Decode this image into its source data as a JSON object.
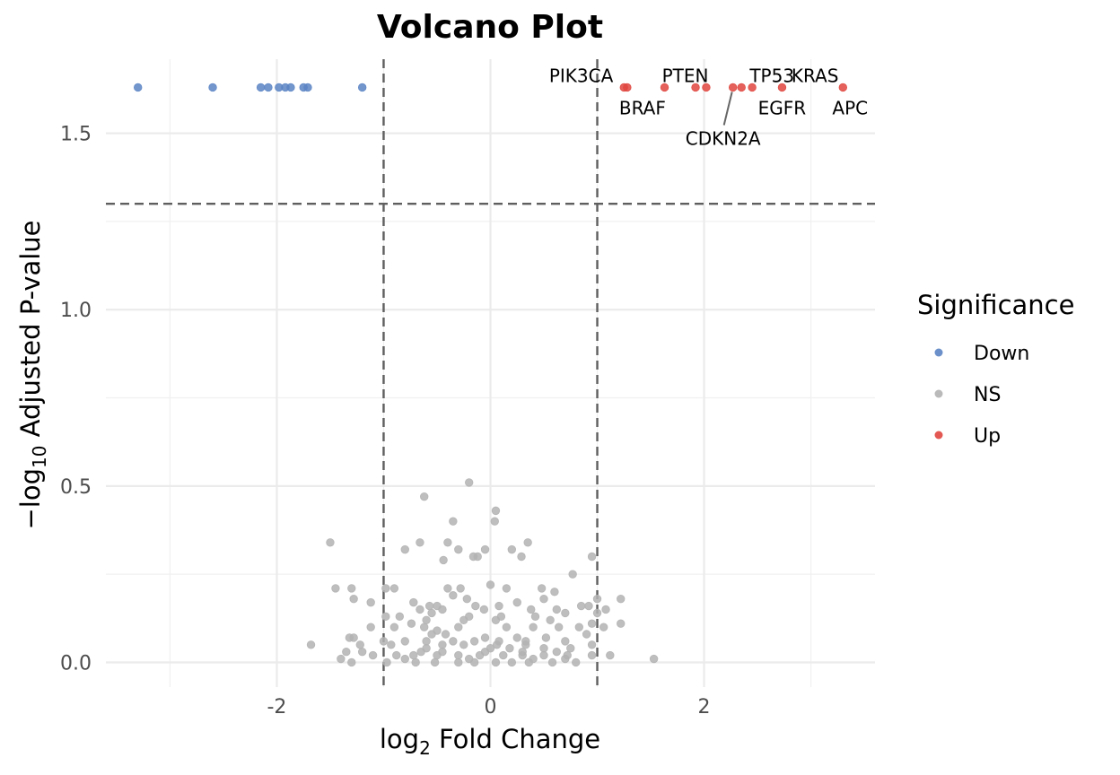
{
  "chart_data": {
    "type": "scatter",
    "title": "Volcano Plot",
    "xlabel": "log2 Fold Change",
    "ylabel": "−log10 Adjusted P-value",
    "xlim": [
      -3.6,
      3.6
    ],
    "ylim": [
      -0.07,
      1.71
    ],
    "x_ticks": [
      "-2",
      "0",
      "2"
    ],
    "y_ticks": [
      "0.0",
      "0.5",
      "1.0",
      "1.5"
    ],
    "grid": true,
    "legend": {
      "title": "Significance",
      "placement": "right",
      "entries": [
        {
          "label": "Down",
          "color": "#5b84c4"
        },
        {
          "label": "NS",
          "color": "#b3b3b3"
        },
        {
          "label": "Up",
          "color": "#e0463f"
        }
      ]
    },
    "thresholds": {
      "log2fc": [
        -1,
        1
      ],
      "neg_log10_padj": 1.3
    },
    "series": [
      {
        "name": "Down",
        "color": "#5b84c4",
        "points": [
          [
            -3.3,
            1.63
          ],
          [
            -2.6,
            1.63
          ],
          [
            -2.15,
            1.63
          ],
          [
            -2.08,
            1.63
          ],
          [
            -1.98,
            1.63
          ],
          [
            -1.92,
            1.63
          ],
          [
            -1.87,
            1.63
          ],
          [
            -1.75,
            1.63
          ],
          [
            -1.71,
            1.63
          ],
          [
            -1.2,
            1.63
          ]
        ]
      },
      {
        "name": "NS",
        "color": "#b3b3b3",
        "points": [
          [
            -0.2,
            0.51
          ],
          [
            0.05,
            0.43
          ],
          [
            -0.62,
            0.47
          ],
          [
            -0.35,
            0.4
          ],
          [
            0.04,
            0.4
          ],
          [
            -1.5,
            0.34
          ],
          [
            -0.66,
            0.34
          ],
          [
            -0.4,
            0.34
          ],
          [
            -0.8,
            0.32
          ],
          [
            -0.3,
            0.32
          ],
          [
            0.2,
            0.32
          ],
          [
            -0.05,
            0.32
          ],
          [
            0.35,
            0.34
          ],
          [
            -0.12,
            0.3
          ],
          [
            -0.16,
            0.3
          ],
          [
            0.29,
            0.3
          ],
          [
            -0.44,
            0.29
          ],
          [
            0.95,
            0.3
          ],
          [
            0.77,
            0.25
          ],
          [
            0.0,
            0.22
          ],
          [
            -1.45,
            0.21
          ],
          [
            -1.3,
            0.21
          ],
          [
            -0.98,
            0.21
          ],
          [
            -0.9,
            0.21
          ],
          [
            -0.4,
            0.21
          ],
          [
            -0.28,
            0.21
          ],
          [
            0.15,
            0.21
          ],
          [
            0.48,
            0.21
          ],
          [
            -1.28,
            0.18
          ],
          [
            -1.12,
            0.17
          ],
          [
            -0.72,
            0.17
          ],
          [
            -0.57,
            0.16
          ],
          [
            -0.5,
            0.16
          ],
          [
            -0.45,
            0.15
          ],
          [
            0.38,
            0.15
          ],
          [
            0.62,
            0.15
          ],
          [
            0.85,
            0.16
          ],
          [
            0.92,
            0.16
          ],
          [
            1.0,
            0.18
          ],
          [
            1.08,
            0.15
          ],
          [
            1.22,
            0.18
          ],
          [
            0.5,
            0.18
          ],
          [
            -0.14,
            0.16
          ],
          [
            0.08,
            0.16
          ],
          [
            0.25,
            0.17
          ],
          [
            -0.35,
            0.19
          ],
          [
            -0.22,
            0.18
          ],
          [
            0.6,
            0.2
          ],
          [
            -0.66,
            0.15
          ],
          [
            -0.06,
            0.15
          ],
          [
            -0.98,
            0.13
          ],
          [
            -0.85,
            0.13
          ],
          [
            -0.55,
            0.14
          ],
          [
            -0.2,
            0.13
          ],
          [
            0.1,
            0.13
          ],
          [
            0.42,
            0.13
          ],
          [
            0.7,
            0.14
          ],
          [
            1.0,
            0.14
          ],
          [
            1.22,
            0.11
          ],
          [
            0.95,
            0.11
          ],
          [
            0.56,
            0.12
          ],
          [
            0.05,
            0.12
          ],
          [
            -0.25,
            0.12
          ],
          [
            -0.6,
            0.12
          ],
          [
            -0.74,
            0.11
          ],
          [
            -1.12,
            0.1
          ],
          [
            -0.9,
            0.1
          ],
          [
            -0.62,
            0.1
          ],
          [
            -0.3,
            0.1
          ],
          [
            0.15,
            0.1
          ],
          [
            0.4,
            0.1
          ],
          [
            0.64,
            0.1
          ],
          [
            0.83,
            0.1
          ],
          [
            1.06,
            0.1
          ],
          [
            -0.5,
            0.09
          ],
          [
            -0.55,
            0.08
          ],
          [
            -0.42,
            0.08
          ],
          [
            -0.05,
            0.07
          ],
          [
            0.25,
            0.07
          ],
          [
            0.52,
            0.07
          ],
          [
            0.9,
            0.08
          ],
          [
            -1.32,
            0.07
          ],
          [
            -1.28,
            0.07
          ],
          [
            -1.0,
            0.06
          ],
          [
            -0.8,
            0.06
          ],
          [
            -0.6,
            0.06
          ],
          [
            -0.35,
            0.06
          ],
          [
            -0.15,
            0.06
          ],
          [
            0.08,
            0.06
          ],
          [
            0.33,
            0.06
          ],
          [
            0.7,
            0.06
          ],
          [
            -1.68,
            0.05
          ],
          [
            -1.22,
            0.05
          ],
          [
            -0.93,
            0.05
          ],
          [
            -0.45,
            0.05
          ],
          [
            -0.25,
            0.05
          ],
          [
            0.06,
            0.05
          ],
          [
            0.33,
            0.05
          ],
          [
            0.5,
            0.04
          ],
          [
            0.75,
            0.04
          ],
          [
            0.95,
            0.05
          ],
          [
            -1.35,
            0.03
          ],
          [
            -1.2,
            0.03
          ],
          [
            -1.1,
            0.02
          ],
          [
            -0.88,
            0.02
          ],
          [
            -0.72,
            0.02
          ],
          [
            -0.5,
            0.02
          ],
          [
            -0.3,
            0.02
          ],
          [
            -0.1,
            0.02
          ],
          [
            0.12,
            0.02
          ],
          [
            0.3,
            0.02
          ],
          [
            0.5,
            0.02
          ],
          [
            0.72,
            0.02
          ],
          [
            0.95,
            0.02
          ],
          [
            1.12,
            0.02
          ],
          [
            1.53,
            0.01
          ],
          [
            -1.3,
            0.0
          ],
          [
            -0.97,
            0.0
          ],
          [
            -0.7,
            0.0
          ],
          [
            -0.52,
            0.0
          ],
          [
            -0.3,
            0.0
          ],
          [
            -0.15,
            0.0
          ],
          [
            0.05,
            0.0
          ],
          [
            0.2,
            0.0
          ],
          [
            0.36,
            0.0
          ],
          [
            0.58,
            0.0
          ],
          [
            0.8,
            0.0
          ],
          [
            -1.4,
            0.01
          ],
          [
            -0.8,
            0.01
          ],
          [
            -0.2,
            0.01
          ],
          [
            0.4,
            0.01
          ],
          [
            0.7,
            0.01
          ],
          [
            -0.65,
            0.03
          ],
          [
            -0.05,
            0.03
          ],
          [
            0.3,
            0.03
          ],
          [
            0.62,
            0.03
          ],
          [
            -0.45,
            0.03
          ],
          [
            0.18,
            0.04
          ],
          [
            -0.6,
            0.04
          ],
          [
            0.0,
            0.04
          ]
        ]
      },
      {
        "name": "Up",
        "color": "#e0463f",
        "points": [
          {
            "x": 1.25,
            "y": 1.63,
            "label": "PIK3CA"
          },
          {
            "x": 1.28,
            "y": 1.63,
            "label": "BRAF"
          },
          {
            "x": 1.63,
            "y": 1.63,
            "label": "PTEN"
          },
          {
            "x": 1.92,
            "y": 1.63,
            "label": ""
          },
          {
            "x": 2.02,
            "y": 1.63,
            "label": ""
          },
          {
            "x": 2.27,
            "y": 1.63,
            "label": "CDKN2A"
          },
          {
            "x": 2.35,
            "y": 1.63,
            "label": "TP53"
          },
          {
            "x": 2.45,
            "y": 1.63,
            "label": "KRAS"
          },
          {
            "x": 2.73,
            "y": 1.63,
            "label": "EGFR"
          },
          {
            "x": 3.3,
            "y": 1.63,
            "label": "APC"
          }
        ]
      }
    ]
  }
}
